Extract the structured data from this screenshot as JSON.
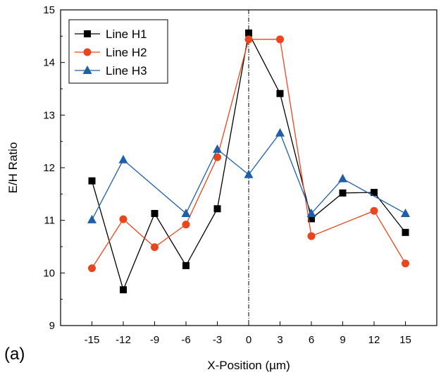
{
  "chart_data": {
    "type": "line",
    "panel_label": "(a)",
    "xlabel": "X-Position (µm)",
    "ylabel": "E/H Ratio",
    "x": [
      -15,
      -12,
      -9,
      -6,
      -3,
      0,
      3,
      6,
      9,
      12,
      15
    ],
    "xticks": [
      "-15",
      "-12",
      "-9",
      "-6",
      "-3",
      "0",
      "3",
      "6",
      "9",
      "12",
      "15"
    ],
    "yticks": [
      "9",
      "10",
      "11",
      "12",
      "13",
      "14",
      "15"
    ],
    "xlim": [
      -18,
      18
    ],
    "ylim": [
      9,
      15
    ],
    "vline_x": 0,
    "legend_position": "top-left",
    "series": [
      {
        "name": "Line H1",
        "color": "#000000",
        "marker": "square",
        "values": [
          11.75,
          9.68,
          11.13,
          10.14,
          11.22,
          14.56,
          13.41,
          11.03,
          11.52,
          11.53,
          10.77
        ]
      },
      {
        "name": "Line H2",
        "color": "#e8461e",
        "marker": "circle",
        "values": [
          10.09,
          11.02,
          10.49,
          10.92,
          12.2,
          14.44,
          14.44,
          10.7,
          null,
          11.18,
          10.18
        ]
      },
      {
        "name": "Line H3",
        "color": "#1f5fa8",
        "marker": "triangle",
        "values": [
          11.01,
          12.15,
          null,
          11.13,
          12.35,
          11.87,
          12.66,
          11.13,
          11.79,
          null,
          11.13
        ]
      }
    ]
  }
}
